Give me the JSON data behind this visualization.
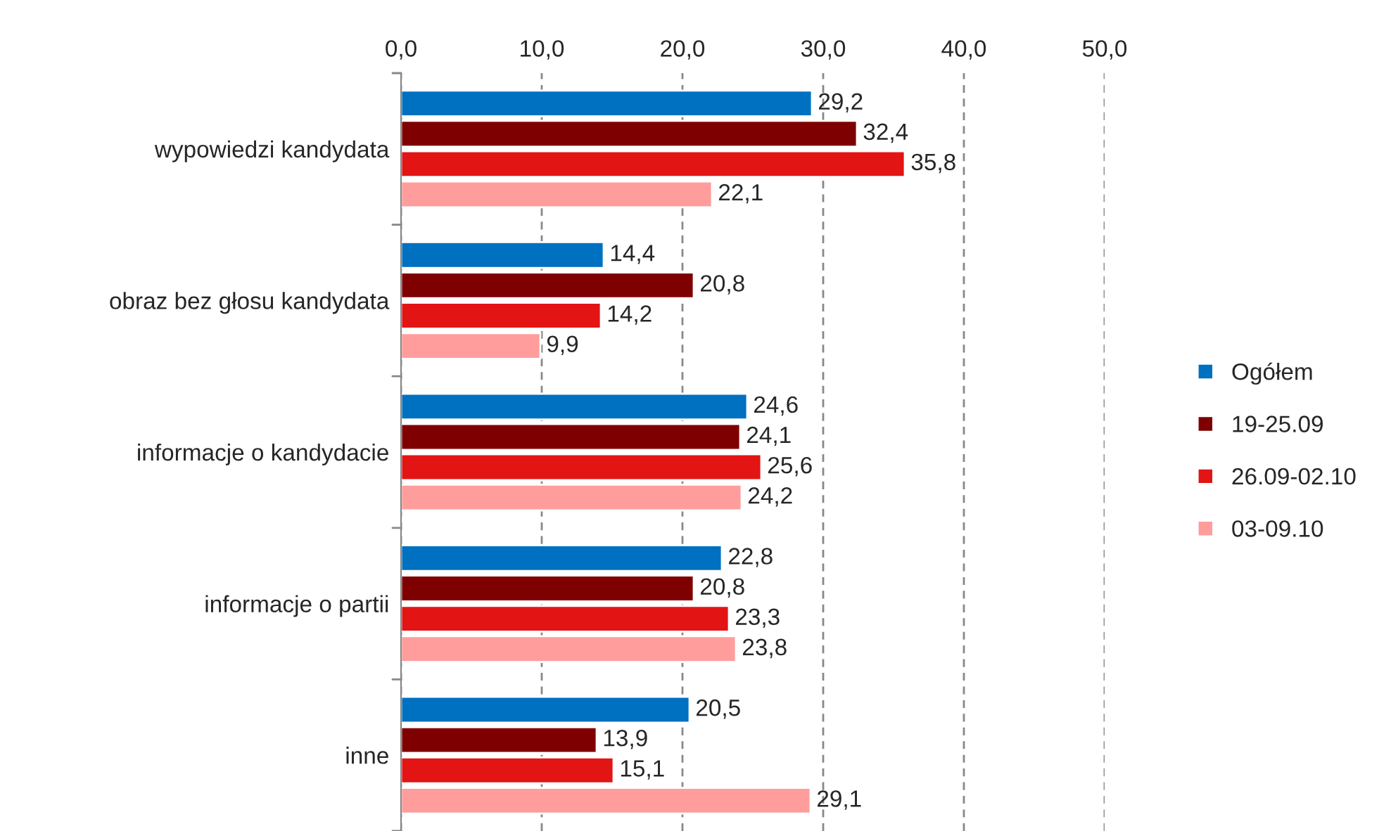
{
  "chart_data": {
    "type": "bar",
    "orientation": "horizontal",
    "categories": [
      "wypowiedzi kandydata",
      "obraz bez głosu kandydata",
      "informacje o kandydacie",
      "informacje o partii",
      "inne"
    ],
    "series": [
      {
        "name": "Ogółem",
        "color": "#0070c0",
        "values": [
          29.2,
          14.4,
          24.6,
          22.8,
          20.5
        ],
        "value_labels": [
          "29,2",
          "14,4",
          "24,6",
          "22,8",
          "20,5"
        ]
      },
      {
        "name": "19-25.09",
        "color": "#7f0000",
        "values": [
          32.4,
          20.8,
          24.1,
          20.8,
          13.9
        ],
        "value_labels": [
          "32,4",
          "20,8",
          "24,1",
          "20,8",
          "13,9"
        ]
      },
      {
        "name": "26.09-02.10",
        "color": "#e31414",
        "values": [
          35.8,
          14.2,
          25.6,
          23.3,
          15.1
        ],
        "value_labels": [
          "35,8",
          "14,2",
          "25,6",
          "23,3",
          "15,1"
        ]
      },
      {
        "name": "03-09.10",
        "color": "#ff9d9d",
        "values": [
          22.1,
          9.9,
          24.2,
          23.8,
          29.1
        ],
        "value_labels": [
          "22,1",
          "9,9",
          "24,2",
          "23,8",
          "29,1"
        ]
      }
    ],
    "xlim": [
      0,
      50
    ],
    "xticks": [
      {
        "value": 0,
        "label": "0,0"
      },
      {
        "value": 10,
        "label": "10,0"
      },
      {
        "value": 20,
        "label": "20,0"
      },
      {
        "value": 30,
        "label": "30,0"
      },
      {
        "value": 40,
        "label": "40,0"
      },
      {
        "value": 50,
        "label": "50,0"
      }
    ],
    "grid": "x",
    "legend": "right"
  }
}
